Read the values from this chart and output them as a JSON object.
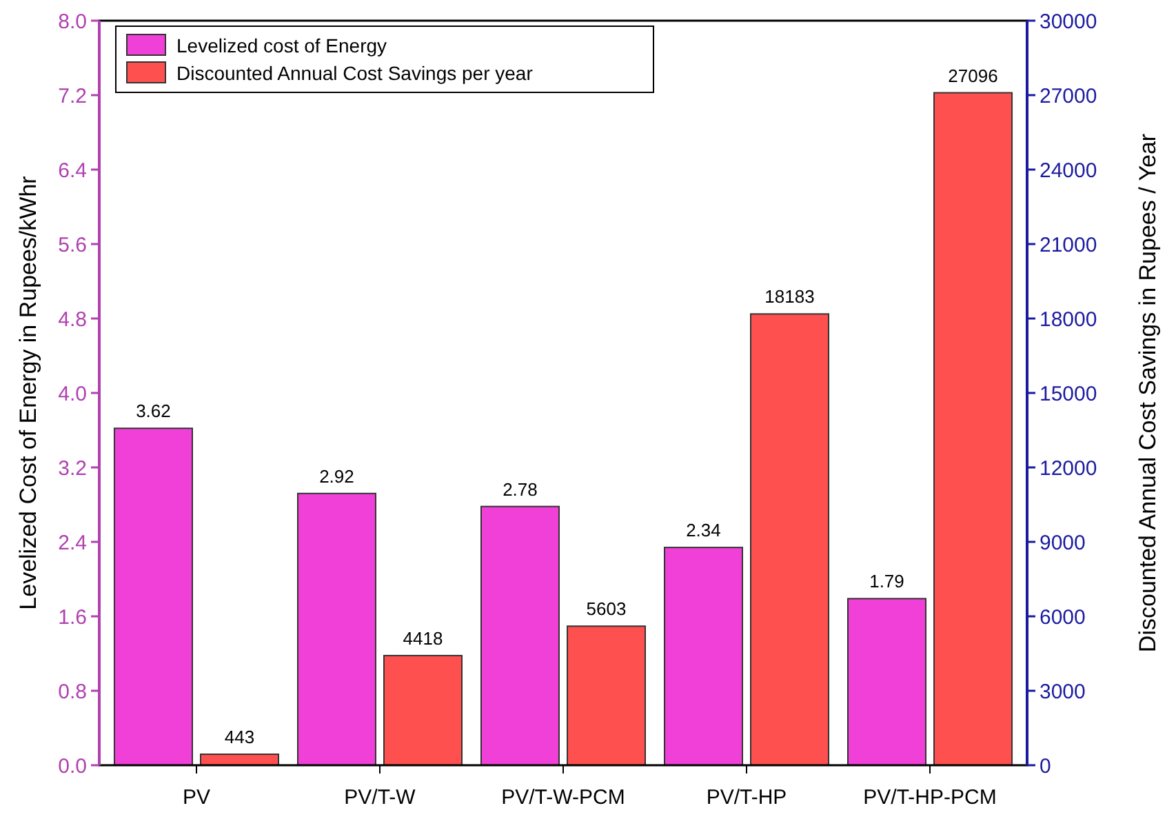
{
  "chart_data": {
    "type": "bar",
    "categories": [
      "PV",
      "PV/T-W",
      "PV/T-W-PCM",
      "PV/T-HP",
      "PV/T-HP-PCM"
    ],
    "ylabel": "Levelized Cost of Energy in Rupees/kWhr",
    "y2label": "Discounted Annual Cost Savings in Rupees / Year",
    "series": [
      {
        "name": "Levelized cost of Energy",
        "color": "#f040d8",
        "values": [
          3.62,
          2.92,
          2.78,
          2.34,
          1.79
        ]
      },
      {
        "name": "Discounted Annual Cost Savings per year",
        "color": "#ff5050",
        "axis": "y2",
        "values": [
          443,
          4418,
          5603,
          18183,
          27096
        ]
      }
    ],
    "ylim": [
      0,
      8
    ],
    "yticks": [
      {
        "value": 0,
        "label": "0.0"
      },
      {
        "value": 0.8,
        "label": "0.8"
      },
      {
        "value": 1.6,
        "label": "1.6"
      },
      {
        "value": 2.4,
        "label": "2.4"
      },
      {
        "value": 3.2,
        "label": "3.2"
      },
      {
        "value": 4,
        "label": "4.0"
      },
      {
        "value": 4.8,
        "label": "4.8"
      },
      {
        "value": 5.6,
        "label": "5.6"
      },
      {
        "value": 6.4,
        "label": "6.4"
      },
      {
        "value": 7.2,
        "label": "7.2"
      },
      {
        "value": 8,
        "label": "8.0"
      }
    ],
    "y2lim": [
      0,
      30000
    ],
    "y2ticks": [
      0,
      3000,
      6000,
      9000,
      12000,
      15000,
      18000,
      21000,
      24000,
      27000,
      30000
    ],
    "data_labels": true,
    "legend": "top left",
    "grid": false
  }
}
